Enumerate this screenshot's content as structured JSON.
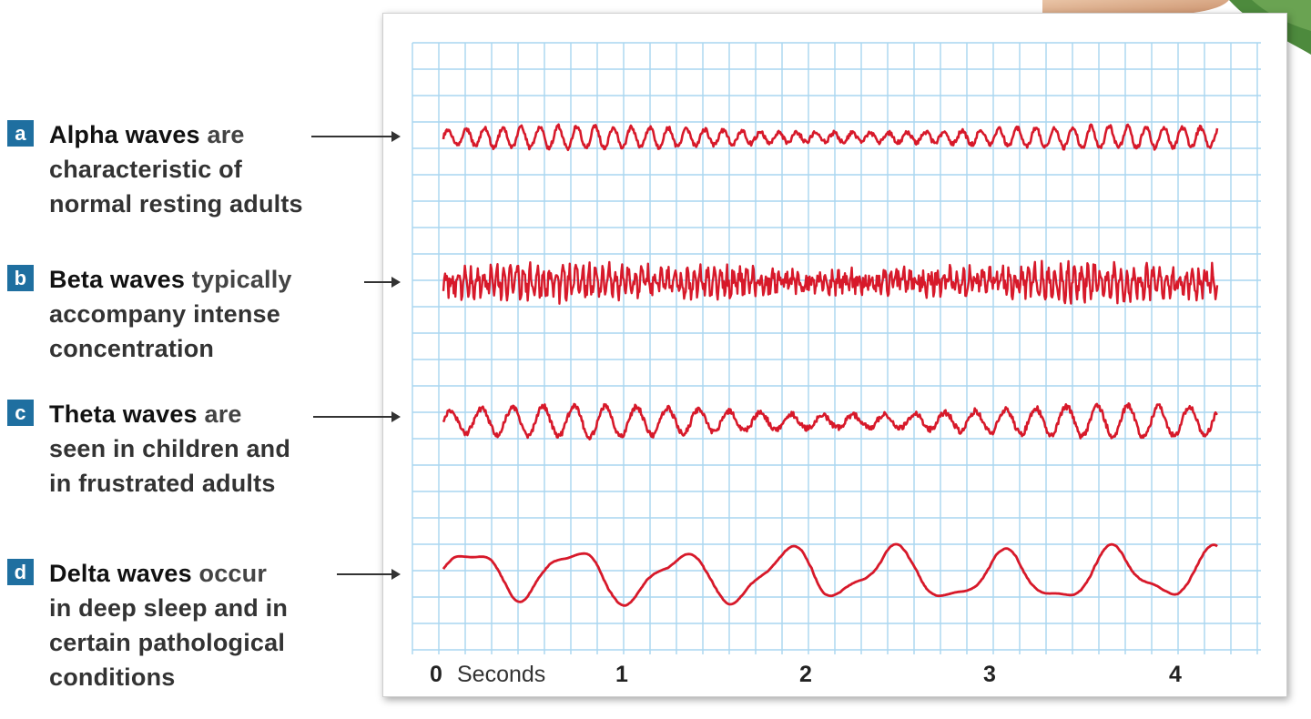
{
  "waves": [
    {
      "id": "a",
      "name": "Alpha waves",
      "description_lines": [
        "are",
        "characteristic of",
        "normal resting adults"
      ],
      "color": "#d7192a"
    },
    {
      "id": "b",
      "name": "Beta waves",
      "description_lines": [
        "typically",
        "accompany intense",
        "concentration"
      ],
      "color": "#d7192a"
    },
    {
      "id": "c",
      "name": "Theta waves",
      "description_lines": [
        "are",
        "seen in children and",
        "in frustrated adults"
      ],
      "color": "#d7192a"
    },
    {
      "id": "d",
      "name": "Delta waves",
      "description_lines": [
        "occur",
        "in deep sleep and in",
        "certain pathological",
        "conditions"
      ],
      "color": "#d7192a"
    }
  ],
  "x_axis": {
    "zero": "0",
    "unit": "Seconds",
    "ticks": [
      "1",
      "2",
      "3",
      "4"
    ]
  },
  "colors": {
    "badge": "#1f6fa0",
    "grid": "#a9d6f0",
    "trace": "#d7192a"
  }
}
